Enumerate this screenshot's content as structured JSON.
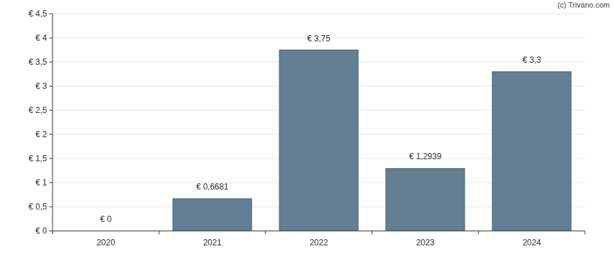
{
  "chart_data": {
    "type": "bar",
    "annotations": [
      "(c) Trivano.com"
    ],
    "categories": [
      "2020",
      "2021",
      "2022",
      "2023",
      "2024"
    ],
    "values": [
      0,
      0.6681,
      3.75,
      1.2939,
      3.3
    ],
    "value_labels": [
      "€ 0",
      "€ 0,6681",
      "€ 3,75",
      "€ 1,2939",
      "€ 3,3"
    ],
    "data_labels": true,
    "color": "#637f93",
    "ylim": [
      0,
      4.5
    ],
    "yticks": [
      {
        "value": 0,
        "label": "€ 0"
      },
      {
        "value": 0.5,
        "label": "€ 0,5"
      },
      {
        "value": 1,
        "label": "€ 1"
      },
      {
        "value": 1.5,
        "label": "€ 1,5"
      },
      {
        "value": 2,
        "label": "€ 2"
      },
      {
        "value": 2.5,
        "label": "€ 2,5"
      },
      {
        "value": 3,
        "label": "€ 3"
      },
      {
        "value": 3.5,
        "label": "€ 3,5"
      },
      {
        "value": 4,
        "label": "€ 4"
      },
      {
        "value": 4.5,
        "label": "€ 4,5"
      }
    ],
    "grid": true
  }
}
